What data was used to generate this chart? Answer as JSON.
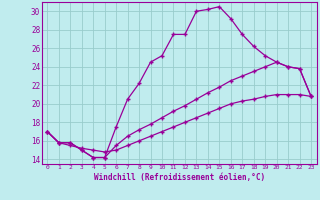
{
  "xlabel": "Windchill (Refroidissement éolien,°C)",
  "bg_color": "#c0ecee",
  "line_color": "#990099",
  "grid_color": "#99cccc",
  "xlim": [
    -0.5,
    23.5
  ],
  "ylim": [
    13.5,
    31.0
  ],
  "xticks": [
    0,
    1,
    2,
    3,
    4,
    5,
    6,
    7,
    8,
    9,
    10,
    11,
    12,
    13,
    14,
    15,
    16,
    17,
    18,
    19,
    20,
    21,
    22,
    23
  ],
  "yticks": [
    14,
    16,
    18,
    20,
    22,
    24,
    26,
    28,
    30
  ],
  "line1_x": [
    0,
    1,
    2,
    3,
    4,
    5,
    6,
    7,
    8,
    9,
    10,
    11,
    12,
    13,
    14,
    15,
    16,
    17,
    18,
    19,
    20,
    21,
    22,
    23
  ],
  "line1_y": [
    17.0,
    15.8,
    15.8,
    15.0,
    14.2,
    14.2,
    17.5,
    20.5,
    22.2,
    24.5,
    25.2,
    27.5,
    27.5,
    30.0,
    30.2,
    30.5,
    29.2,
    27.5,
    26.2,
    25.2,
    24.5,
    24.0,
    23.8,
    20.8
  ],
  "line2_x": [
    0,
    1,
    2,
    3,
    4,
    5,
    6,
    7,
    8,
    9,
    10,
    11,
    12,
    13,
    14,
    15,
    16,
    17,
    18,
    19,
    20,
    21,
    22,
    23
  ],
  "line2_y": [
    17.0,
    15.8,
    15.8,
    15.0,
    14.2,
    14.2,
    15.5,
    16.5,
    17.2,
    17.8,
    18.5,
    19.2,
    19.8,
    20.5,
    21.2,
    21.8,
    22.5,
    23.0,
    23.5,
    24.0,
    24.5,
    24.0,
    23.8,
    20.8
  ],
  "line3_x": [
    0,
    1,
    2,
    3,
    4,
    5,
    6,
    7,
    8,
    9,
    10,
    11,
    12,
    13,
    14,
    15,
    16,
    17,
    18,
    19,
    20,
    21,
    22,
    23
  ],
  "line3_y": [
    17.0,
    15.8,
    15.5,
    15.2,
    15.0,
    14.8,
    15.0,
    15.5,
    16.0,
    16.5,
    17.0,
    17.5,
    18.0,
    18.5,
    19.0,
    19.5,
    20.0,
    20.3,
    20.5,
    20.8,
    21.0,
    21.0,
    21.0,
    20.8
  ]
}
